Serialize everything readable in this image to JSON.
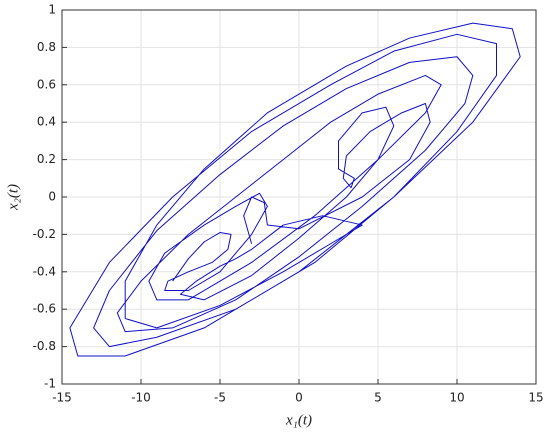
{
  "chart_data": {
    "type": "line",
    "xlabel": "x₁(t)",
    "ylabel": "x₂(t)",
    "color": "#1010c8",
    "xlim": [
      -15,
      15
    ],
    "ylim": [
      -1,
      1
    ],
    "xticks": [
      -15,
      -10,
      -5,
      0,
      5,
      10,
      15
    ],
    "yticks": [
      -1,
      -0.8,
      -0.6,
      -0.4,
      -0.2,
      0,
      0.2,
      0.4,
      0.6,
      0.8,
      1
    ],
    "grid": true,
    "x": [
      -8,
      -7,
      -6,
      -5,
      -4.3,
      -4.5,
      -5.5,
      -7,
      -8.3,
      -8.5,
      -7,
      -5,
      -3,
      -2,
      -2.5,
      -4,
      -6,
      -8.5,
      -9.5,
      -9,
      -7,
      -3,
      1,
      5,
      8,
      9,
      8,
      5,
      2,
      -1,
      -4,
      -7,
      -10,
      -11.5,
      -11,
      -8,
      -4,
      0,
      4,
      8,
      10.5,
      11,
      10,
      7,
      3,
      -1,
      -5,
      -9,
      -12,
      -13,
      -12,
      -9,
      -4,
      1,
      6,
      10,
      12.5,
      12.5,
      10,
      6,
      2,
      -3,
      -8,
      -12,
      -14.5,
      -14,
      -11,
      -6,
      0,
      6,
      11,
      14,
      13.5,
      11,
      7,
      3,
      -2,
      -6,
      -9,
      -11,
      -11,
      -9,
      -5,
      -1,
      2,
      4,
      1.5,
      -1,
      -3,
      -4,
      -5,
      -6.5,
      -7.5,
      -6,
      -3,
      0,
      3,
      5,
      6,
      5.5,
      4,
      2.5,
      2.5,
      3.5,
      3.3,
      2.8,
      3,
      4.5,
      6.5,
      8,
      8.3,
      7,
      4,
      0,
      -2,
      -2.2,
      -3,
      -3.5,
      -3
    ],
    "values": [
      -0.45,
      -0.33,
      -0.24,
      -0.19,
      -0.2,
      -0.28,
      -0.35,
      -0.4,
      -0.45,
      -0.5,
      -0.5,
      -0.4,
      -0.2,
      -0.05,
      0.02,
      -0.05,
      -0.15,
      -0.3,
      -0.45,
      -0.55,
      -0.55,
      -0.35,
      -0.1,
      0.2,
      0.45,
      0.6,
      0.65,
      0.55,
      0.4,
      0.2,
      0,
      -0.2,
      -0.45,
      -0.62,
      -0.72,
      -0.7,
      -0.55,
      -0.32,
      -0.05,
      0.25,
      0.5,
      0.65,
      0.75,
      0.72,
      0.58,
      0.38,
      0.12,
      -0.18,
      -0.5,
      -0.7,
      -0.8,
      -0.75,
      -0.6,
      -0.35,
      0,
      0.35,
      0.65,
      0.82,
      0.87,
      0.78,
      0.6,
      0.35,
      0,
      -0.35,
      -0.7,
      -0.85,
      -0.85,
      -0.7,
      -0.4,
      0,
      0.4,
      0.75,
      0.9,
      0.93,
      0.85,
      0.7,
      0.45,
      0.15,
      -0.15,
      -0.45,
      -0.65,
      -0.7,
      -0.58,
      -0.4,
      -0.25,
      -0.15,
      -0.1,
      -0.15,
      -0.28,
      -0.33,
      -0.37,
      -0.45,
      -0.52,
      -0.55,
      -0.42,
      -0.22,
      0,
      0.2,
      0.38,
      0.48,
      0.45,
      0.3,
      0.15,
      0.1,
      0.05,
      0.1,
      0.22,
      0.35,
      0.45,
      0.5,
      0.4,
      0.2,
      0,
      -0.17,
      -0.15,
      -0.03,
      0,
      -0.1,
      -0.25
    ]
  }
}
